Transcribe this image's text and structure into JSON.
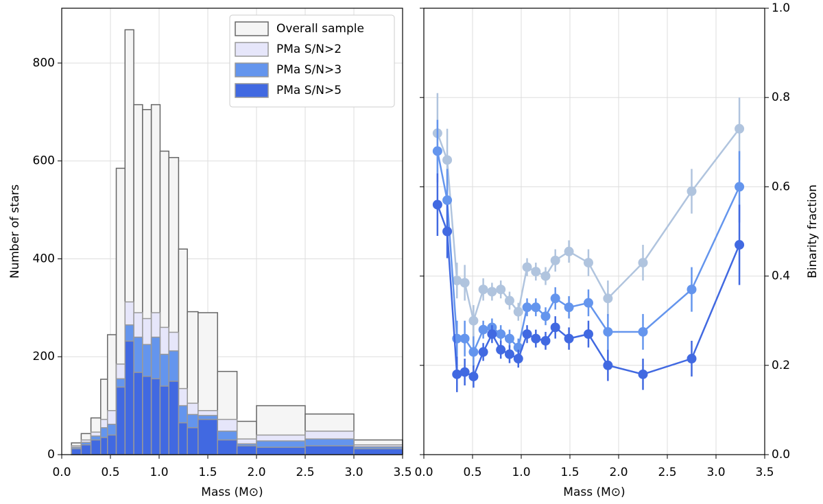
{
  "chart_data": [
    {
      "type": "histogram",
      "ylabel": "Number of stars",
      "xlabel": "Mass (M⊙)",
      "bins": [
        0.1,
        0.2,
        0.3,
        0.4,
        0.47,
        0.56,
        0.65,
        0.74,
        0.83,
        0.92,
        1.01,
        1.1,
        1.2,
        1.29,
        1.4,
        1.6,
        1.8,
        2.0,
        2.5,
        3.0,
        3.5
      ],
      "series": [
        {
          "name": "Overall sample",
          "color": "#f5f5f5",
          "edgecolor": "#666666",
          "values": [
            24,
            43,
            75,
            154,
            245,
            585,
            868,
            715,
            705,
            715,
            620,
            607,
            420,
            292,
            290,
            170,
            68,
            100,
            83,
            30
          ]
        },
        {
          "name": "PMa S/N>2",
          "color": "#e6e6fa",
          "edgecolor": "#999999",
          "values": [
            18,
            30,
            46,
            72,
            90,
            185,
            312,
            290,
            278,
            290,
            260,
            250,
            135,
            105,
            90,
            72,
            32,
            40,
            48,
            20
          ]
        },
        {
          "name": "PMa S/N>3",
          "color": "#6495ed",
          "edgecolor": "#999999",
          "values": [
            15,
            25,
            38,
            55,
            62,
            155,
            265,
            240,
            225,
            240,
            205,
            212,
            100,
            82,
            80,
            48,
            22,
            28,
            32,
            16
          ]
        },
        {
          "name": "PMa S/N>5",
          "color": "#4169e1",
          "edgecolor": "#999999",
          "values": [
            12,
            20,
            30,
            35,
            40,
            138,
            232,
            168,
            160,
            155,
            140,
            150,
            65,
            55,
            72,
            30,
            18,
            15,
            18,
            12
          ]
        }
      ],
      "xlim": [
        0,
        3.5
      ],
      "xticks": [
        {
          "value": 0,
          "label": "0.0"
        },
        0.5,
        {
          "value": 1,
          "label": "1.0"
        },
        1.5,
        {
          "value": 2,
          "label": "2.0"
        },
        2.5,
        {
          "value": 3,
          "label": "3.0"
        },
        3.5
      ],
      "ylim": [
        0,
        912
      ],
      "yticks": [
        0,
        200,
        400,
        600,
        800
      ],
      "grid": true,
      "legend": "upper right"
    },
    {
      "type": "line",
      "ylabel": "Binarity fraction",
      "xlabel": "Mass (M⊙)",
      "yaxis_side": "right",
      "x": [
        0.14,
        0.24,
        0.34,
        0.42,
        0.51,
        0.61,
        0.7,
        0.79,
        0.88,
        0.97,
        1.06,
        1.15,
        1.25,
        1.35,
        1.49,
        1.69,
        1.89,
        2.25,
        2.75,
        3.24
      ],
      "series": [
        {
          "color": "#b0c4de",
          "values": [
            0.72,
            0.66,
            0.39,
            0.385,
            0.3,
            0.37,
            0.365,
            0.37,
            0.345,
            0.32,
            0.42,
            0.41,
            0.4,
            0.435,
            0.455,
            0.43,
            0.35,
            0.43,
            0.59,
            0.73
          ],
          "errors": [
            0.09,
            0.07,
            0.04,
            0.04,
            0.035,
            0.025,
            0.02,
            0.02,
            0.02,
            0.02,
            0.02,
            0.02,
            0.02,
            0.025,
            0.025,
            0.03,
            0.04,
            0.04,
            0.05,
            0.07
          ]
        },
        {
          "color": "#6495ed",
          "values": [
            0.68,
            0.57,
            0.26,
            0.26,
            0.23,
            0.28,
            0.285,
            0.27,
            0.26,
            0.24,
            0.33,
            0.33,
            0.31,
            0.35,
            0.33,
            0.34,
            0.275,
            0.275,
            0.37,
            0.6
          ],
          "errors": [
            0.07,
            0.07,
            0.04,
            0.04,
            0.035,
            0.02,
            0.02,
            0.02,
            0.02,
            0.02,
            0.02,
            0.02,
            0.02,
            0.025,
            0.025,
            0.03,
            0.04,
            0.04,
            0.05,
            0.08
          ]
        },
        {
          "color": "#4169e1",
          "values": [
            0.56,
            0.5,
            0.18,
            0.185,
            0.175,
            0.23,
            0.27,
            0.235,
            0.225,
            0.215,
            0.27,
            0.26,
            0.255,
            0.285,
            0.26,
            0.27,
            0.2,
            0.18,
            0.215,
            0.47
          ],
          "errors": [
            0.07,
            0.06,
            0.04,
            0.03,
            0.025,
            0.02,
            0.02,
            0.02,
            0.02,
            0.02,
            0.02,
            0.02,
            0.02,
            0.025,
            0.025,
            0.03,
            0.035,
            0.035,
            0.04,
            0.09
          ]
        }
      ],
      "xlim": [
        0,
        3.5
      ],
      "xticks": [
        {
          "value": 0,
          "label": "0.0"
        },
        0.5,
        {
          "value": 1,
          "label": "1.0"
        },
        1.5,
        {
          "value": 2,
          "label": "2.0"
        },
        2.5,
        {
          "value": 3,
          "label": "3.0"
        },
        3.5
      ],
      "ylim": [
        0,
        1
      ],
      "yticks": [
        {
          "value": 0,
          "label": "0.0"
        },
        0.2,
        0.4,
        0.6,
        0.8,
        {
          "value": 1,
          "label": "1.0"
        }
      ],
      "grid": true
    }
  ]
}
